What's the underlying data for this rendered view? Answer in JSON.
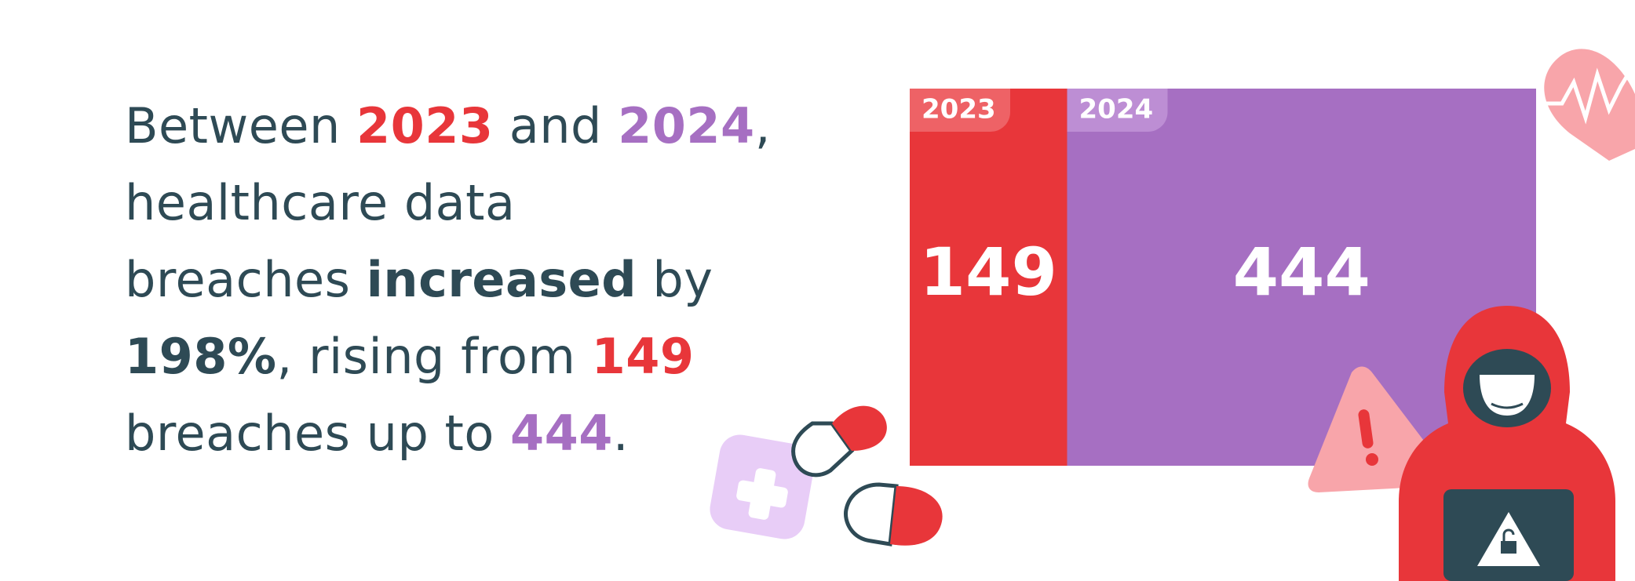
{
  "chart_data": {
    "type": "bar",
    "categories": [
      "2023",
      "2024"
    ],
    "values": [
      149,
      444
    ],
    "colors": [
      "#e8363a",
      "#a66fc2"
    ],
    "tab_colors": [
      "#ee6266",
      "#bd8ed4"
    ]
  },
  "paragraph": [
    "Between ",
    " and ",
    ",",
    "healthcare data",
    "breaches ",
    "increased",
    " by",
    "198%",
    ", rising from ",
    "breaches up to ",
    "."
  ]
}
